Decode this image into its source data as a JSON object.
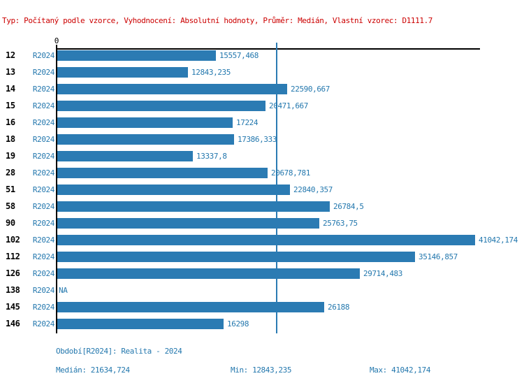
{
  "header": {
    "title": "Typ: Počítaný podle vzorce, Vyhodnocení: Absolutní hodnoty, Průměr: Medián, Vlastní vzorec: D1111.7"
  },
  "colors": {
    "bar": "#2b7bb3",
    "label_blue": "#2478ae",
    "title_red": "#cc0000",
    "axis_black": "#000000"
  },
  "chart_data": {
    "type": "bar",
    "orientation": "horizontal",
    "title": "Typ: Počítaný podle vzorce, Vyhodnocení: Absolutní hodnoty, Průměr: Medián, Vlastní vzorec: D1111.7",
    "categories": [
      "12",
      "13",
      "14",
      "15",
      "16",
      "18",
      "19",
      "28",
      "51",
      "58",
      "90",
      "102",
      "112",
      "126",
      "138",
      "145",
      "146"
    ],
    "series_label": "R2024",
    "values": [
      15557.468,
      12843.235,
      22590.667,
      20471.667,
      17224,
      17386.333,
      13337.8,
      20678.781,
      22840.357,
      26784.5,
      25763.75,
      41042.174,
      35146.857,
      29714.483,
      null,
      26188,
      16298
    ],
    "value_labels": [
      "15557,468",
      "12843,235",
      "22590,667",
      "20471,667",
      "17224",
      "17386,333",
      "13337,8",
      "20678,781",
      "22840,357",
      "26784,5",
      "25763,75",
      "41042,174",
      "35146,857",
      "29714,483",
      "NA",
      "26188",
      "16298"
    ],
    "zero_label": "0",
    "na_label": "NA",
    "xlim": [
      0,
      41600
    ],
    "median": 21634.724,
    "min": 12843.235,
    "max": 41042.174,
    "gridlines": false,
    "legend": "none"
  },
  "footer": {
    "period": "Období[R2024]: Realita - 2024",
    "median": "Medián: 21634,724",
    "min": "Min: 12843,235",
    "max": "Max: 41042,174"
  }
}
